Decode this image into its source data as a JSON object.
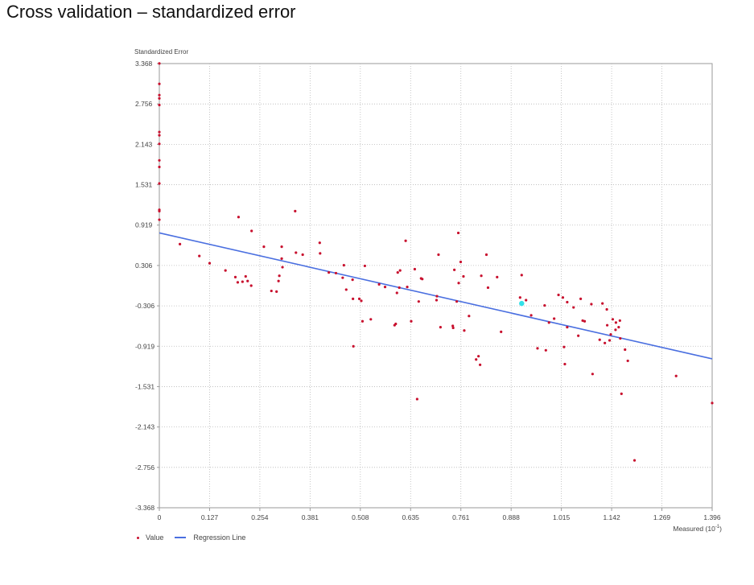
{
  "slide_title": "Cross validation – standardized error",
  "chart_data": {
    "type": "scatter",
    "title": "",
    "ylabel": "Standardized Error",
    "xlabel": "Measured (10",
    "xlabel_exp": "-1",
    "xlabel_close": ")",
    "xlim": [
      0,
      1.396
    ],
    "ylim": [
      -3.368,
      3.368
    ],
    "x_ticks": [
      "0",
      "0.127",
      "0.254",
      "0.381",
      "0.508",
      "0.635",
      "0.761",
      "0.888",
      "1.015",
      "1.142",
      "1.269",
      "1.396"
    ],
    "y_ticks": [
      "3.368",
      "2.756",
      "2.143",
      "1.531",
      "0.919",
      "0.306",
      "-0.306",
      "-0.919",
      "-1.531",
      "-2.143",
      "-2.756",
      "-3.368"
    ],
    "grid": true,
    "legend": [
      "Value",
      "Regression Line"
    ],
    "legend_position": "bottom-left",
    "colors": {
      "points": "#c8102e",
      "line": "#4a6fe0",
      "selected": "#33e0e8",
      "grid": "#b8b8b8"
    },
    "regression": {
      "x": [
        0,
        1.396
      ],
      "y": [
        0.8,
        -1.11
      ]
    },
    "selected_point": [
      0.915,
      -0.27
    ],
    "series": [
      {
        "name": "Value",
        "points": [
          [
            0.0,
            3.37
          ],
          [
            0.0,
            3.06
          ],
          [
            0.0,
            2.89
          ],
          [
            0.0,
            2.84
          ],
          [
            0.0,
            2.74
          ],
          [
            0.0,
            2.33
          ],
          [
            0.0,
            2.28
          ],
          [
            0.0,
            2.15
          ],
          [
            0.0,
            1.9
          ],
          [
            0.0,
            1.8
          ],
          [
            0.0,
            1.55
          ],
          [
            0.0,
            1.15
          ],
          [
            0.0,
            1.13
          ],
          [
            0.0,
            1.0
          ],
          [
            0.052,
            0.63
          ],
          [
            0.101,
            0.45
          ],
          [
            0.127,
            0.34
          ],
          [
            0.167,
            0.23
          ],
          [
            0.192,
            0.13
          ],
          [
            0.198,
            0.05
          ],
          [
            0.21,
            0.06
          ],
          [
            0.218,
            0.14
          ],
          [
            0.223,
            0.07
          ],
          [
            0.232,
            0.0
          ],
          [
            0.2,
            1.04
          ],
          [
            0.233,
            0.83
          ],
          [
            0.264,
            0.59
          ],
          [
            0.283,
            -0.08
          ],
          [
            0.296,
            -0.09
          ],
          [
            0.301,
            0.07
          ],
          [
            0.303,
            0.15
          ],
          [
            0.309,
            0.41
          ],
          [
            0.309,
            0.59
          ],
          [
            0.311,
            0.28
          ],
          [
            0.343,
            1.13
          ],
          [
            0.345,
            0.5
          ],
          [
            0.362,
            0.47
          ],
          [
            0.405,
            0.65
          ],
          [
            0.406,
            0.49
          ],
          [
            0.428,
            0.2
          ],
          [
            0.446,
            0.19
          ],
          [
            0.463,
            0.12
          ],
          [
            0.466,
            0.31
          ],
          [
            0.472,
            -0.06
          ],
          [
            0.488,
            0.09
          ],
          [
            0.489,
            -0.2
          ],
          [
            0.49,
            -0.92
          ],
          [
            0.505,
            -0.2
          ],
          [
            0.51,
            -0.23
          ],
          [
            0.513,
            -0.54
          ],
          [
            0.519,
            0.3
          ],
          [
            0.534,
            -0.51
          ],
          [
            0.555,
            0.02
          ],
          [
            0.57,
            -0.02
          ],
          [
            0.594,
            -0.6
          ],
          [
            0.597,
            -0.58
          ],
          [
            0.6,
            -0.11
          ],
          [
            0.602,
            0.2
          ],
          [
            0.606,
            -0.03
          ],
          [
            0.608,
            0.23
          ],
          [
            0.622,
            0.68
          ],
          [
            0.626,
            -0.02
          ],
          [
            0.636,
            -0.54
          ],
          [
            0.645,
            0.25
          ],
          [
            0.651,
            -1.72
          ],
          [
            0.655,
            -0.24
          ],
          [
            0.661,
            0.11
          ],
          [
            0.664,
            0.1
          ],
          [
            0.7,
            -0.22
          ],
          [
            0.701,
            -0.16
          ],
          [
            0.705,
            0.47
          ],
          [
            0.71,
            -0.63
          ],
          [
            0.741,
            -0.61
          ],
          [
            0.742,
            -0.64
          ],
          [
            0.745,
            0.24
          ],
          [
            0.751,
            -0.24
          ],
          [
            0.756,
            0.04
          ],
          [
            0.755,
            0.8
          ],
          [
            0.761,
            0.36
          ],
          [
            0.768,
            0.14
          ],
          [
            0.77,
            -0.68
          ],
          [
            0.782,
            -0.46
          ],
          [
            0.8,
            -1.12
          ],
          [
            0.806,
            -1.07
          ],
          [
            0.81,
            -1.2
          ],
          [
            0.813,
            0.15
          ],
          [
            0.826,
            0.47
          ],
          [
            0.83,
            -0.03
          ],
          [
            0.853,
            0.13
          ],
          [
            0.863,
            -0.7
          ],
          [
            0.911,
            -0.18
          ],
          [
            0.915,
            0.16
          ],
          [
            0.926,
            -0.22
          ],
          [
            0.939,
            -0.45
          ],
          [
            0.955,
            -0.95
          ],
          [
            0.973,
            -0.3
          ],
          [
            0.976,
            -0.98
          ],
          [
            0.984,
            -0.56
          ],
          [
            0.997,
            -0.5
          ],
          [
            1.008,
            -0.14
          ],
          [
            1.019,
            -0.18
          ],
          [
            1.022,
            -0.93
          ],
          [
            1.024,
            -1.19
          ],
          [
            1.03,
            -0.63
          ],
          [
            1.03,
            -0.25
          ],
          [
            1.046,
            -0.33
          ],
          [
            1.058,
            -0.76
          ],
          [
            1.064,
            -0.2
          ],
          [
            1.069,
            -0.53
          ],
          [
            1.074,
            -0.54
          ],
          [
            1.091,
            -0.28
          ],
          [
            1.094,
            -1.34
          ],
          [
            1.112,
            -0.82
          ],
          [
            1.119,
            -0.27
          ],
          [
            1.125,
            -0.87
          ],
          [
            1.13,
            -0.36
          ],
          [
            1.131,
            -0.6
          ],
          [
            1.137,
            -0.83
          ],
          [
            1.14,
            -0.74
          ],
          [
            1.145,
            -0.51
          ],
          [
            1.152,
            -0.67
          ],
          [
            1.153,
            -0.56
          ],
          [
            1.16,
            -0.63
          ],
          [
            1.163,
            -0.53
          ],
          [
            1.164,
            -0.8
          ],
          [
            1.167,
            -1.64
          ],
          [
            1.176,
            -0.97
          ],
          [
            1.183,
            -1.14
          ],
          [
            1.2,
            -2.65
          ],
          [
            1.305,
            -1.37
          ],
          [
            1.396,
            -1.78
          ]
        ]
      }
    ]
  }
}
